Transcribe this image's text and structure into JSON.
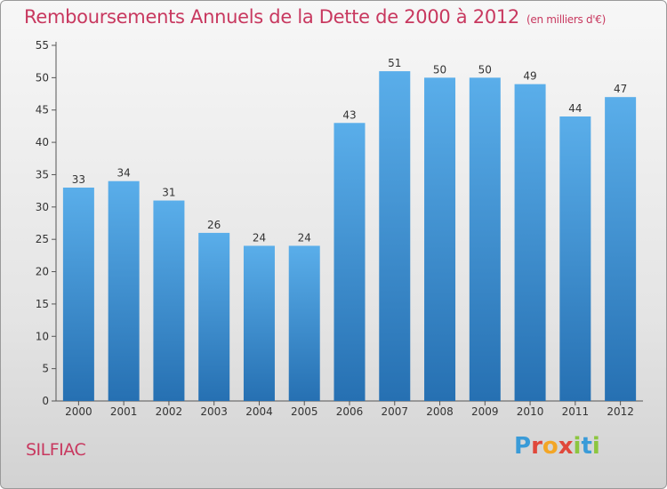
{
  "chart_title": "Remboursements Annuels de la Dette de 2000 à 2012",
  "chart_unit": "(en milliers d'€)",
  "commune": "SILFIAC",
  "brand": {
    "letters": [
      "P",
      "r",
      "o",
      "x",
      "i",
      "t",
      "i"
    ],
    "colors": [
      "#3a9bd8",
      "#e0483b",
      "#f3a626",
      "#e0483b",
      "#8cc63f",
      "#3a9bd8",
      "#8cc63f"
    ]
  },
  "colors": {
    "bar": "#4a9ee0",
    "bar_dark": "#2b72b5",
    "title": "#c8385f"
  },
  "chart_data": {
    "type": "bar",
    "title": "Remboursements Annuels de la Dette de 2000 à 2012",
    "categories": [
      "2000",
      "2001",
      "2002",
      "2003",
      "2004",
      "2005",
      "2006",
      "2007",
      "2008",
      "2009",
      "2010",
      "2011",
      "2012"
    ],
    "values": [
      33,
      34,
      31,
      26,
      24,
      24,
      43,
      51,
      50,
      50,
      49,
      44,
      47
    ],
    "ylim": [
      0,
      55
    ],
    "yticks": [
      0,
      5,
      10,
      15,
      20,
      25,
      30,
      35,
      40,
      45,
      50,
      55
    ],
    "grid": false,
    "data_labels": true
  }
}
